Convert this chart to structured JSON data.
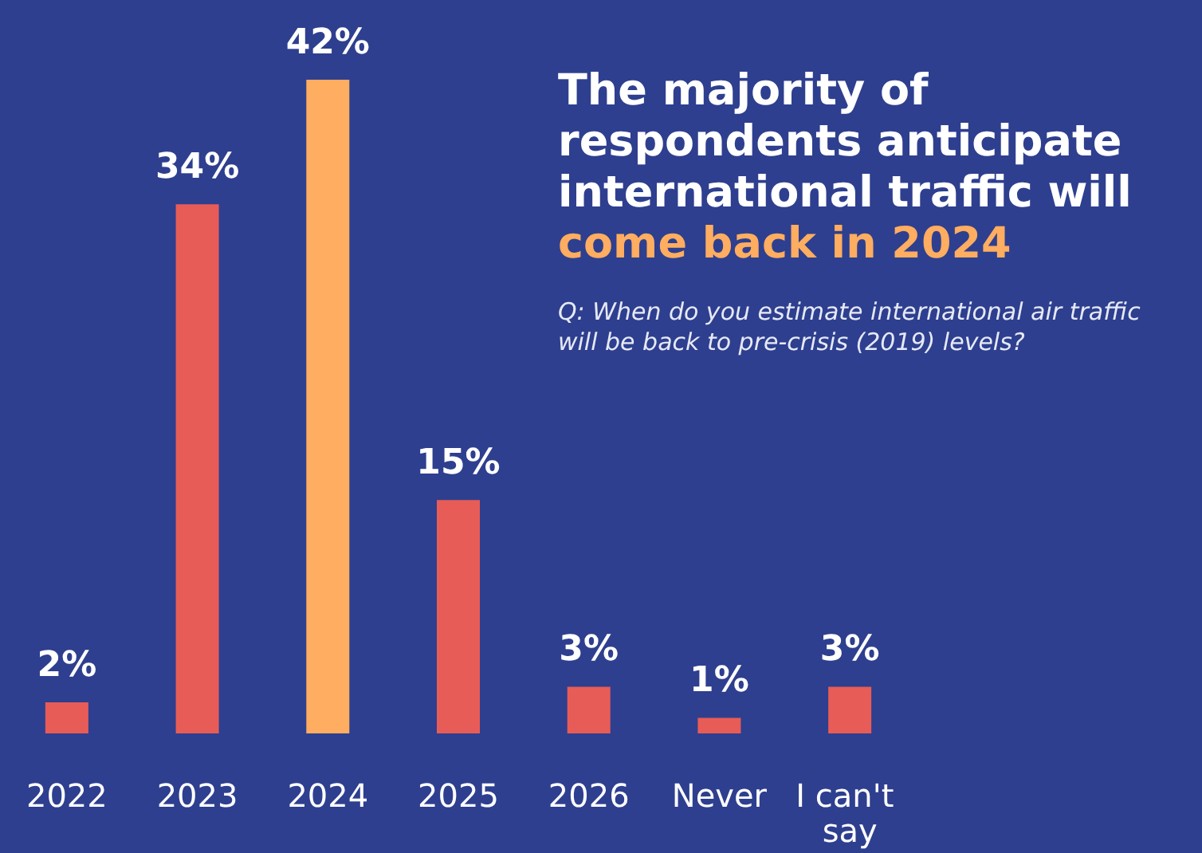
{
  "chart_data": {
    "type": "bar",
    "title": "The majority of\nrespondents anticipate\ninternational traffic will\ncome back in 2024",
    "subtitle": "Q: When do you estimate international air traffic\nwill be back to pre-crisis (2019) levels?",
    "categories": [
      "2022",
      "2023",
      "2024",
      "2025",
      "2026",
      "Never",
      "I can't say"
    ],
    "values": [
      2,
      34,
      42,
      15,
      3,
      1,
      3
    ],
    "value_labels": [
      "2%",
      "34%",
      "42%",
      "15%",
      "3%",
      "1%",
      "3%"
    ],
    "colors": [
      "#e85c57",
      "#e85c57",
      "#ffad60",
      "#e85c57",
      "#e85c57",
      "#e85c57",
      "#e85c57"
    ]
  }
}
